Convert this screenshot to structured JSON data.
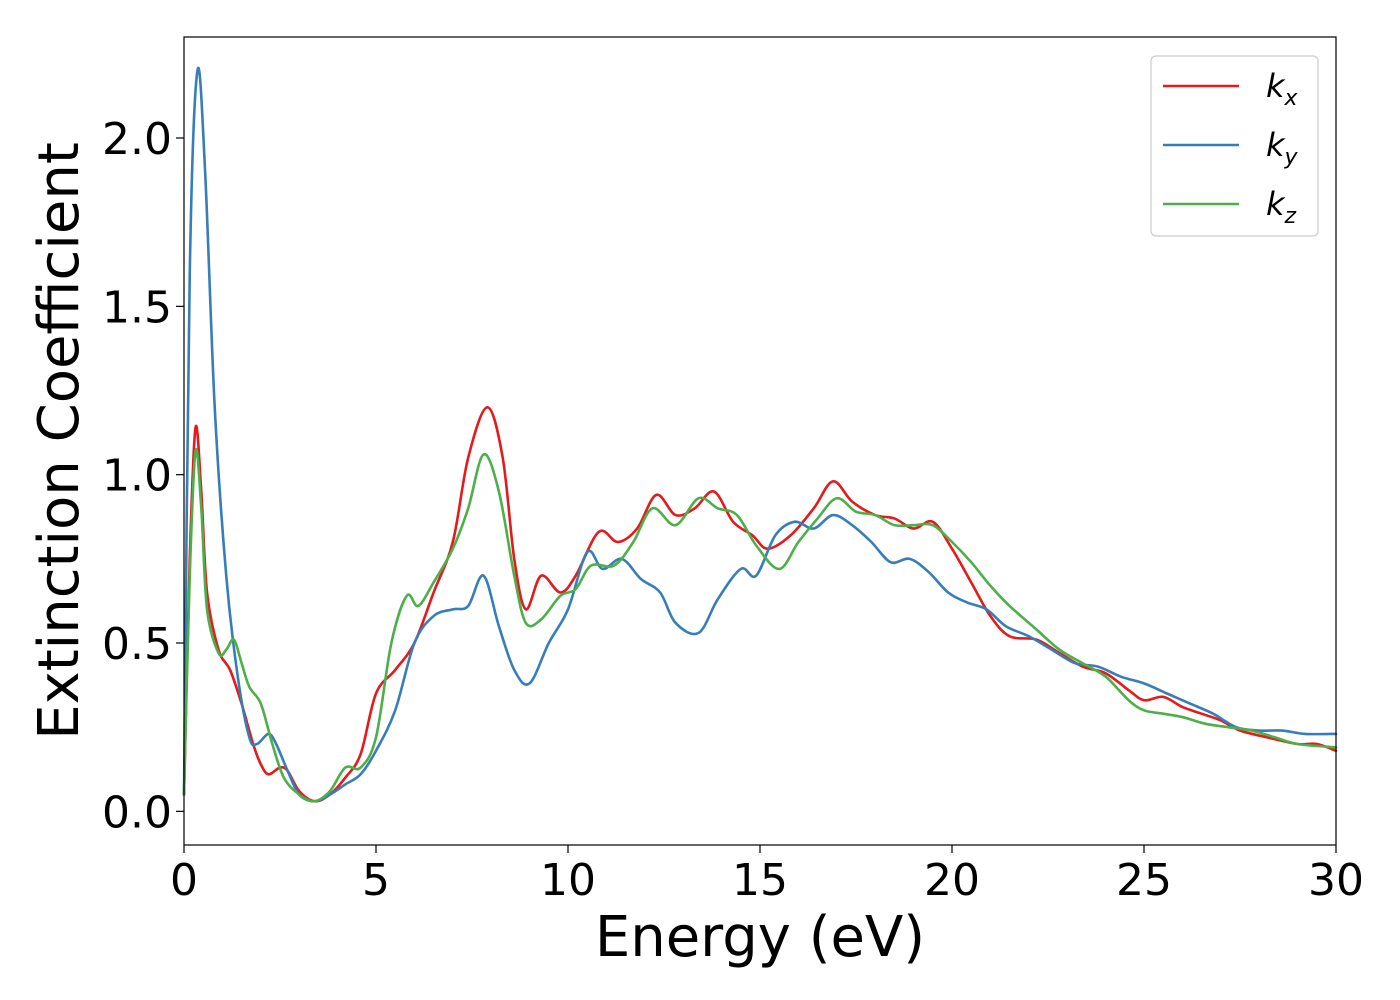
{
  "chart_data": {
    "type": "line",
    "xlabel": "Energy (eV)",
    "ylabel": "Extinction Coefficient",
    "xlim": [
      0,
      30
    ],
    "ylim": [
      -0.1,
      2.3
    ],
    "xticks": [
      0,
      5,
      10,
      15,
      20,
      25,
      30
    ],
    "xtick_labels": [
      "0",
      "5",
      "10",
      "15",
      "20",
      "25",
      "30"
    ],
    "yticks": [
      0.0,
      0.5,
      1.0,
      1.5,
      2.0
    ],
    "ytick_labels": [
      "0.0",
      "0.5",
      "1.0",
      "1.5",
      "2.0"
    ],
    "grid": false,
    "legend_position": "top-right",
    "series": [
      {
        "name": "k_x",
        "label_base": "k",
        "label_sub": "x",
        "color": "#e41a1c",
        "points": [
          [
            0,
            0.05
          ],
          [
            0.15,
            0.75
          ],
          [
            0.3,
            1.14
          ],
          [
            0.45,
            0.95
          ],
          [
            0.6,
            0.65
          ],
          [
            0.9,
            0.48
          ],
          [
            1.2,
            0.42
          ],
          [
            1.5,
            0.32
          ],
          [
            1.8,
            0.2
          ],
          [
            2.0,
            0.14
          ],
          [
            2.2,
            0.11
          ],
          [
            2.5,
            0.13
          ],
          [
            2.7,
            0.12
          ],
          [
            3.0,
            0.06
          ],
          [
            3.4,
            0.03
          ],
          [
            3.8,
            0.05
          ],
          [
            4.2,
            0.1
          ],
          [
            4.6,
            0.17
          ],
          [
            5.0,
            0.35
          ],
          [
            5.5,
            0.42
          ],
          [
            6.0,
            0.5
          ],
          [
            6.5,
            0.65
          ],
          [
            7.0,
            0.8
          ],
          [
            7.4,
            1.05
          ],
          [
            7.9,
            1.2
          ],
          [
            8.3,
            1.05
          ],
          [
            8.6,
            0.75
          ],
          [
            8.9,
            0.6
          ],
          [
            9.3,
            0.7
          ],
          [
            9.8,
            0.65
          ],
          [
            10.2,
            0.7
          ],
          [
            10.8,
            0.83
          ],
          [
            11.3,
            0.8
          ],
          [
            11.8,
            0.84
          ],
          [
            12.3,
            0.94
          ],
          [
            12.8,
            0.88
          ],
          [
            13.3,
            0.9
          ],
          [
            13.8,
            0.95
          ],
          [
            14.3,
            0.86
          ],
          [
            14.8,
            0.82
          ],
          [
            15.2,
            0.78
          ],
          [
            15.8,
            0.82
          ],
          [
            16.4,
            0.9
          ],
          [
            16.9,
            0.98
          ],
          [
            17.4,
            0.92
          ],
          [
            18.0,
            0.88
          ],
          [
            18.5,
            0.87
          ],
          [
            19.0,
            0.84
          ],
          [
            19.5,
            0.86
          ],
          [
            20.0,
            0.78
          ],
          [
            20.5,
            0.68
          ],
          [
            21.0,
            0.58
          ],
          [
            21.5,
            0.52
          ],
          [
            22.2,
            0.51
          ],
          [
            22.8,
            0.47
          ],
          [
            23.4,
            0.43
          ],
          [
            24.0,
            0.41
          ],
          [
            24.6,
            0.36
          ],
          [
            25.0,
            0.33
          ],
          [
            25.5,
            0.34
          ],
          [
            26.0,
            0.31
          ],
          [
            26.5,
            0.29
          ],
          [
            27.0,
            0.27
          ],
          [
            27.5,
            0.24
          ],
          [
            28.2,
            0.22
          ],
          [
            29.0,
            0.2
          ],
          [
            29.5,
            0.2
          ],
          [
            30.0,
            0.18
          ]
        ]
      },
      {
        "name": "k_y",
        "label_base": "k",
        "label_sub": "y",
        "color": "#377eb8",
        "points": [
          [
            0,
            0.05
          ],
          [
            0.15,
            1.6
          ],
          [
            0.35,
            2.2
          ],
          [
            0.55,
            1.9
          ],
          [
            0.8,
            1.2
          ],
          [
            1.1,
            0.7
          ],
          [
            1.4,
            0.4
          ],
          [
            1.7,
            0.22
          ],
          [
            1.9,
            0.2
          ],
          [
            2.2,
            0.23
          ],
          [
            2.4,
            0.2
          ],
          [
            2.7,
            0.12
          ],
          [
            3.0,
            0.05
          ],
          [
            3.4,
            0.03
          ],
          [
            3.8,
            0.05
          ],
          [
            4.2,
            0.08
          ],
          [
            4.6,
            0.11
          ],
          [
            5.0,
            0.18
          ],
          [
            5.5,
            0.3
          ],
          [
            6.0,
            0.5
          ],
          [
            6.5,
            0.58
          ],
          [
            7.0,
            0.6
          ],
          [
            7.4,
            0.61
          ],
          [
            7.8,
            0.7
          ],
          [
            8.2,
            0.55
          ],
          [
            8.6,
            0.42
          ],
          [
            9.0,
            0.38
          ],
          [
            9.5,
            0.5
          ],
          [
            10.0,
            0.6
          ],
          [
            10.5,
            0.77
          ],
          [
            10.9,
            0.72
          ],
          [
            11.4,
            0.75
          ],
          [
            11.9,
            0.69
          ],
          [
            12.4,
            0.65
          ],
          [
            12.8,
            0.56
          ],
          [
            13.4,
            0.53
          ],
          [
            13.9,
            0.63
          ],
          [
            14.5,
            0.72
          ],
          [
            14.9,
            0.7
          ],
          [
            15.4,
            0.82
          ],
          [
            15.9,
            0.86
          ],
          [
            16.4,
            0.84
          ],
          [
            16.9,
            0.88
          ],
          [
            17.4,
            0.85
          ],
          [
            17.9,
            0.8
          ],
          [
            18.4,
            0.74
          ],
          [
            18.9,
            0.75
          ],
          [
            19.4,
            0.71
          ],
          [
            19.9,
            0.65
          ],
          [
            20.4,
            0.62
          ],
          [
            20.9,
            0.6
          ],
          [
            21.4,
            0.55
          ],
          [
            22.0,
            0.52
          ],
          [
            22.6,
            0.48
          ],
          [
            23.2,
            0.44
          ],
          [
            23.8,
            0.43
          ],
          [
            24.4,
            0.4
          ],
          [
            25.0,
            0.38
          ],
          [
            25.6,
            0.35
          ],
          [
            26.2,
            0.32
          ],
          [
            26.8,
            0.29
          ],
          [
            27.4,
            0.25
          ],
          [
            28.0,
            0.24
          ],
          [
            28.6,
            0.24
          ],
          [
            29.2,
            0.23
          ],
          [
            30.0,
            0.23
          ]
        ]
      },
      {
        "name": "k_z",
        "label_base": "k",
        "label_sub": "z",
        "color": "#4daf4a",
        "points": [
          [
            0,
            0.05
          ],
          [
            0.15,
            0.7
          ],
          [
            0.3,
            1.07
          ],
          [
            0.45,
            0.9
          ],
          [
            0.6,
            0.6
          ],
          [
            0.9,
            0.47
          ],
          [
            1.1,
            0.48
          ],
          [
            1.3,
            0.51
          ],
          [
            1.5,
            0.44
          ],
          [
            1.7,
            0.37
          ],
          [
            2.0,
            0.32
          ],
          [
            2.3,
            0.2
          ],
          [
            2.6,
            0.1
          ],
          [
            3.0,
            0.05
          ],
          [
            3.4,
            0.03
          ],
          [
            3.8,
            0.06
          ],
          [
            4.2,
            0.13
          ],
          [
            4.6,
            0.13
          ],
          [
            5.0,
            0.22
          ],
          [
            5.4,
            0.5
          ],
          [
            5.8,
            0.64
          ],
          [
            6.1,
            0.61
          ],
          [
            6.5,
            0.68
          ],
          [
            7.0,
            0.78
          ],
          [
            7.4,
            0.9
          ],
          [
            7.8,
            1.06
          ],
          [
            8.2,
            0.95
          ],
          [
            8.6,
            0.7
          ],
          [
            8.9,
            0.56
          ],
          [
            9.3,
            0.57
          ],
          [
            9.8,
            0.64
          ],
          [
            10.2,
            0.66
          ],
          [
            10.6,
            0.73
          ],
          [
            11.2,
            0.73
          ],
          [
            11.7,
            0.8
          ],
          [
            12.2,
            0.9
          ],
          [
            12.8,
            0.85
          ],
          [
            13.4,
            0.93
          ],
          [
            13.9,
            0.9
          ],
          [
            14.4,
            0.88
          ],
          [
            14.9,
            0.79
          ],
          [
            15.5,
            0.72
          ],
          [
            16.0,
            0.8
          ],
          [
            16.5,
            0.87
          ],
          [
            17.0,
            0.93
          ],
          [
            17.5,
            0.89
          ],
          [
            18.0,
            0.88
          ],
          [
            18.5,
            0.85
          ],
          [
            19.0,
            0.85
          ],
          [
            19.5,
            0.85
          ],
          [
            20.0,
            0.8
          ],
          [
            20.5,
            0.74
          ],
          [
            21.0,
            0.67
          ],
          [
            21.5,
            0.61
          ],
          [
            22.2,
            0.54
          ],
          [
            22.8,
            0.48
          ],
          [
            23.4,
            0.44
          ],
          [
            24.0,
            0.4
          ],
          [
            24.6,
            0.33
          ],
          [
            25.0,
            0.3
          ],
          [
            25.5,
            0.29
          ],
          [
            26.0,
            0.28
          ],
          [
            26.6,
            0.26
          ],
          [
            27.2,
            0.25
          ],
          [
            27.8,
            0.24
          ],
          [
            28.4,
            0.22
          ],
          [
            29.0,
            0.2
          ],
          [
            30.0,
            0.19
          ]
        ]
      }
    ]
  }
}
